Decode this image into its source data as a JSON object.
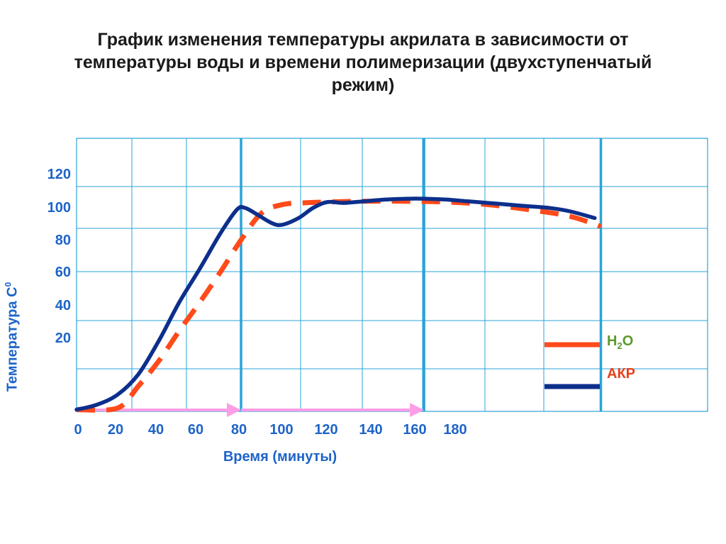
{
  "slide": {
    "title_lines": [
      "График изменения температуры акрилата в зависимости от",
      "температуры воды и времени полимеризации (двухступенчатый",
      "режим)"
    ]
  },
  "chart_data": {
    "type": "line",
    "title": "График изменения температуры акрилата в зависимости от температуры воды и времени полимеризации (двухступенчатый режим)",
    "xlabel": "Время (минуты)",
    "ylabel": "Температура С",
    "ylabel_superscript": "0",
    "x_ticks": [
      0,
      20,
      40,
      60,
      80,
      100,
      120,
      140,
      160,
      180
    ],
    "y_ticks": [
      20,
      40,
      60,
      80,
      100,
      120
    ],
    "xlim": [
      0,
      310
    ],
    "ylim": [
      -40,
      125
    ],
    "grid": true,
    "stage_lines_x": [
      80,
      169,
      255
    ],
    "stage_arrows": [
      [
        0,
        80
      ],
      [
        80,
        169
      ]
    ],
    "legend_position": "right-middle",
    "colors": {
      "axis_text": "#1e64c8",
      "grid": "#2aa3d9",
      "water": "#ff4a1a",
      "acrylate": "#0d2f8c",
      "arrow": "#ff9de6",
      "legend_h2o_text": "#5a9a2e",
      "legend_akr_text": "#e8401a"
    },
    "series": [
      {
        "name": "H2O",
        "label_main": "H",
        "label_sub": "2",
        "label_tail": "O",
        "style": "dashed",
        "x": [
          0,
          20,
          30,
          40,
          50,
          60,
          70,
          80,
          90,
          100,
          110,
          120,
          140,
          160,
          180,
          200,
          220,
          240,
          255
        ],
        "values": [
          -39,
          -38,
          -25,
          -10,
          8,
          25,
          43,
          62,
          78,
          83,
          84,
          84.5,
          85,
          85,
          84.5,
          83,
          80,
          76,
          70
        ]
      },
      {
        "name": "АКР",
        "style": "solid",
        "x": [
          0,
          10,
          20,
          30,
          40,
          50,
          60,
          70,
          78,
          82,
          88,
          95,
          100,
          108,
          115,
          122,
          130,
          140,
          150,
          160,
          170,
          180,
          190,
          200,
          210,
          220,
          230,
          240,
          252
        ],
        "values": [
          -39,
          -36,
          -30,
          -18,
          2,
          25,
          45,
          66,
          80,
          81,
          77,
          72,
          71,
          75,
          81,
          84.5,
          84,
          85,
          86,
          86.5,
          86.5,
          86,
          85,
          84,
          83,
          82,
          81,
          79,
          75
        ]
      }
    ]
  }
}
